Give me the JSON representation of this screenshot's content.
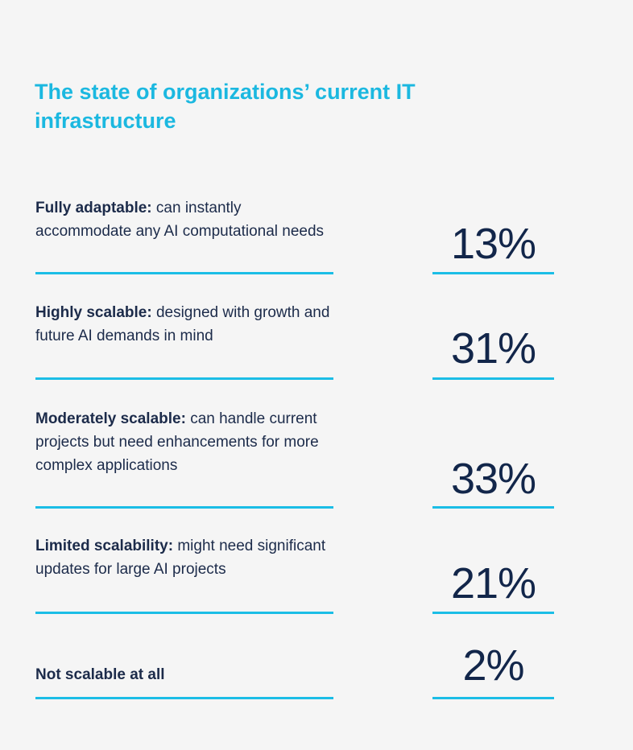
{
  "chart_data": {
    "type": "table",
    "title": "The state of organizations’ current IT infrastructure",
    "unit": "%",
    "categories": [
      "Fully adaptable",
      "Highly scalable",
      "Moderately scalable",
      "Limited scalability",
      "Not scalable at all"
    ],
    "values": [
      13,
      31,
      33,
      21,
      2
    ],
    "rows": [
      {
        "term": "Fully adaptable:",
        "desc": " can instantly accommodate any AI computational needs",
        "value": 13,
        "display": "13%"
      },
      {
        "term": "Highly scalable:",
        "desc": " designed with growth and future AI demands in mind",
        "value": 31,
        "display": "31%"
      },
      {
        "term": "Moderately scalable:",
        "desc": " can handle current projects but need enhancements for more complex applications",
        "value": 33,
        "display": "33%"
      },
      {
        "term": "Limited scalability:",
        "desc": " might need significant updates for large AI projects",
        "value": 21,
        "display": "21%"
      },
      {
        "term": "Not scalable at all",
        "desc": "",
        "value": 2,
        "display": "2%"
      }
    ]
  },
  "colors": {
    "title": "#1bb8e0",
    "text": "#1c2b4a",
    "accent_line": "#1bbde6",
    "background": "#f5f5f5"
  }
}
